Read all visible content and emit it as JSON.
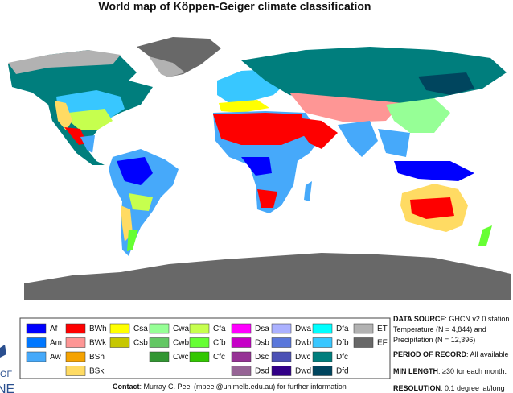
{
  "title": "World map of Köppen-Geiger climate classification",
  "legend": [
    [
      {
        "code": "Af",
        "color": "#0000fe"
      },
      {
        "code": "Am",
        "color": "#0077ff"
      },
      {
        "code": "Aw",
        "color": "#46a9fa"
      }
    ],
    [
      {
        "code": "BWh",
        "color": "#fe0000"
      },
      {
        "code": "BWk",
        "color": "#fe9695"
      },
      {
        "code": "BSh",
        "color": "#f5a301"
      },
      {
        "code": "BSk",
        "color": "#ffdb63"
      }
    ],
    [
      {
        "code": "Csa",
        "color": "#ffff00"
      },
      {
        "code": "Csb",
        "color": "#c6c700"
      }
    ],
    [
      {
        "code": "Cwa",
        "color": "#96ff96"
      },
      {
        "code": "Cwb",
        "color": "#63c764"
      },
      {
        "code": "Cwc",
        "color": "#329633"
      }
    ],
    [
      {
        "code": "Cfa",
        "color": "#c6ff4e"
      },
      {
        "code": "Cfb",
        "color": "#66ff33"
      },
      {
        "code": "Cfc",
        "color": "#33c701"
      }
    ],
    [
      {
        "code": "Dsa",
        "color": "#ff00fe"
      },
      {
        "code": "Dsb",
        "color": "#c600c7"
      },
      {
        "code": "Dsc",
        "color": "#963295"
      },
      {
        "code": "Dsd",
        "color": "#966495"
      }
    ],
    [
      {
        "code": "Dwa",
        "color": "#abb1ff"
      },
      {
        "code": "Dwb",
        "color": "#5a77db"
      },
      {
        "code": "Dwc",
        "color": "#4c51b5"
      },
      {
        "code": "Dwd",
        "color": "#320087"
      }
    ],
    [
      {
        "code": "Dfa",
        "color": "#00ffff"
      },
      {
        "code": "Dfb",
        "color": "#38c7ff"
      },
      {
        "code": "Dfc",
        "color": "#007e7d"
      },
      {
        "code": "Dfd",
        "color": "#00455e"
      }
    ],
    [
      {
        "code": "ET",
        "color": "#b2b2b2"
      },
      {
        "code": "EF",
        "color": "#686868"
      }
    ]
  ],
  "info": [
    {
      "label": "DATA SOURCE",
      "text": ": GHCN v2.0 station"
    },
    {
      "text": "Temperature (N = 4,844) and"
    },
    {
      "text": "Precipitation (N = 12,396)"
    },
    {
      "label": "PERIOD OF RECORD",
      "text": ": All available"
    },
    {
      "label": "MIN LENGTH",
      "text": ": ≥30 for each month."
    },
    {
      "label": "RESOLUTION",
      "text": ": 0.1 degree lat/long"
    }
  ],
  "contact": {
    "label": "Contact",
    "text": ": Murray C. Peel (mpeel@unimelb.edu.au) for further information"
  },
  "logo": [
    "OF",
    "NE"
  ]
}
